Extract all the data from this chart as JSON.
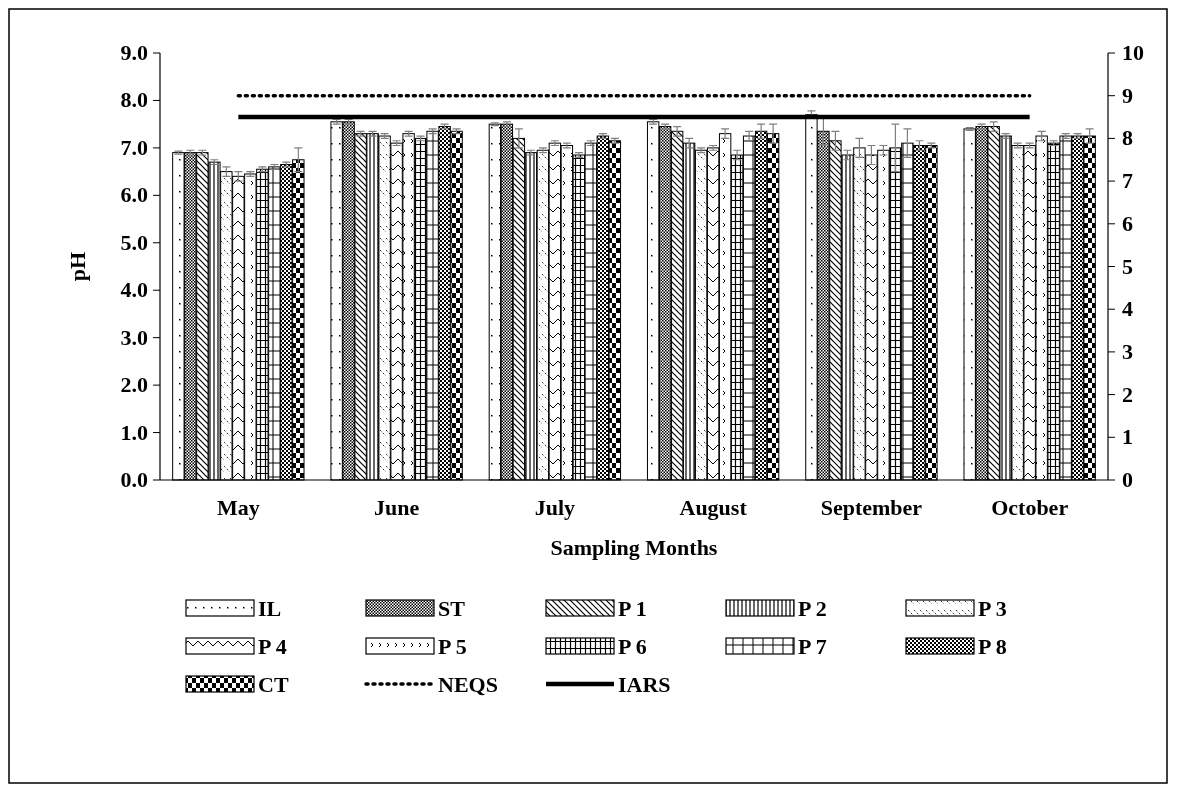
{
  "chart_data": {
    "type": "bar",
    "xlabel": "Sampling Months",
    "ylabel": "pH",
    "categories": [
      "May",
      "June",
      "July",
      "August",
      "September",
      "October"
    ],
    "ylim": [
      0,
      9
    ],
    "yticks": [
      {
        "value": 0,
        "label": "0.0"
      },
      {
        "value": 1,
        "label": "1.0"
      },
      {
        "value": 2,
        "label": "2.0"
      },
      {
        "value": 3,
        "label": "3.0"
      },
      {
        "value": 4,
        "label": "4.0"
      },
      {
        "value": 5,
        "label": "5.0"
      },
      {
        "value": 6,
        "label": "6.0"
      },
      {
        "value": 7,
        "label": "7.0"
      },
      {
        "value": 8,
        "label": "8.0"
      },
      {
        "value": 9,
        "label": "9.0"
      }
    ],
    "y2lim": [
      0,
      10
    ],
    "y2ticks": [
      0,
      1,
      2,
      3,
      4,
      5,
      6,
      7,
      8,
      9,
      10
    ],
    "legend": "bottom",
    "grid": false,
    "series": [
      {
        "name": "IL",
        "color": "#000000",
        "values": [
          6.9,
          7.55,
          7.5,
          7.55,
          7.7,
          7.4
        ],
        "errors": [
          0.03,
          0.05,
          0.03,
          0.05,
          0.08,
          0.03
        ]
      },
      {
        "name": "ST",
        "color": "#000000",
        "values": [
          6.9,
          7.55,
          7.5,
          7.45,
          7.35,
          7.45
        ],
        "errors": [
          0.05,
          0.05,
          0.05,
          0.05,
          0.3,
          0.05
        ]
      },
      {
        "name": "P 1",
        "color": "#000000",
        "values": [
          6.9,
          7.3,
          7.2,
          7.35,
          7.15,
          7.45
        ],
        "errors": [
          0.05,
          0.05,
          0.2,
          0.1,
          0.2,
          0.1
        ]
      },
      {
        "name": "P 2",
        "color": "#000000",
        "values": [
          6.7,
          7.3,
          6.9,
          7.1,
          6.85,
          7.25
        ],
        "errors": [
          0.05,
          0.05,
          0.05,
          0.1,
          0.1,
          0.05
        ]
      },
      {
        "name": "P 3",
        "color": "#000000",
        "values": [
          6.5,
          7.25,
          6.95,
          6.95,
          7.0,
          7.05
        ],
        "errors": [
          0.1,
          0.05,
          0.05,
          0.05,
          0.2,
          0.05
        ]
      },
      {
        "name": "P 4",
        "color": "#000000",
        "values": [
          6.4,
          7.1,
          7.1,
          7.0,
          6.85,
          7.05
        ],
        "errors": [
          0.1,
          0.05,
          0.05,
          0.05,
          0.2,
          0.05
        ]
      },
      {
        "name": "P 5",
        "color": "#000000",
        "values": [
          6.45,
          7.3,
          7.05,
          7.3,
          6.95,
          7.25
        ],
        "errors": [
          0.05,
          0.05,
          0.05,
          0.1,
          0.1,
          0.1
        ]
      },
      {
        "name": "P 6",
        "color": "#000000",
        "values": [
          6.55,
          7.2,
          6.85,
          6.85,
          7.0,
          7.1
        ],
        "errors": [
          0.05,
          0.05,
          0.05,
          0.1,
          0.5,
          0.05
        ]
      },
      {
        "name": "P 7",
        "color": "#000000",
        "values": [
          6.6,
          7.35,
          7.1,
          7.25,
          7.1,
          7.25
        ],
        "errors": [
          0.05,
          0.05,
          0.05,
          0.1,
          0.3,
          0.05
        ]
      },
      {
        "name": "P 8",
        "color": "#000000",
        "values": [
          6.65,
          7.45,
          7.25,
          7.35,
          7.05,
          7.25
        ],
        "errors": [
          0.05,
          0.05,
          0.05,
          0.15,
          0.1,
          0.05
        ]
      },
      {
        "name": "CT",
        "color": "#000000",
        "values": [
          6.75,
          7.35,
          7.15,
          7.3,
          7.05,
          7.25
        ],
        "errors": [
          0.25,
          0.05,
          0.05,
          0.2,
          0.05,
          0.15
        ]
      },
      {
        "name": "NEQS",
        "type": "line",
        "axis": "y2",
        "line_style": "dotted",
        "color": "#000000",
        "values": [
          9,
          9,
          9,
          9,
          9,
          9
        ]
      },
      {
        "name": "IARS",
        "type": "line",
        "axis": "y2",
        "line_style": "solid",
        "color": "#000000",
        "values": [
          8.5,
          8.5,
          8.5,
          8.5,
          8.5,
          8.5
        ]
      }
    ]
  }
}
